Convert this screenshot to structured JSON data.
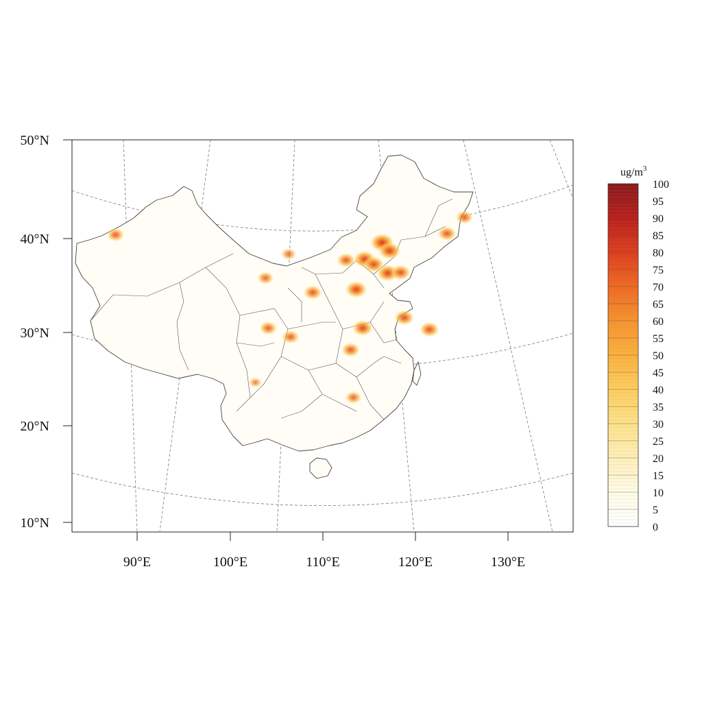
{
  "map": {
    "lat_labels": [
      "50°N",
      "40°N",
      "30°N",
      "20°N",
      "10°N"
    ],
    "lon_labels": [
      "90°E",
      "100°E",
      "110°E",
      "120°E",
      "130°E"
    ],
    "projection": "conic",
    "graticule_style": "dashed"
  },
  "legend": {
    "unit_base": "ug/m",
    "unit_sup": "3",
    "ticks": [
      "100",
      "95",
      "90",
      "85",
      "80",
      "75",
      "70",
      "65",
      "60",
      "55",
      "50",
      "45",
      "40",
      "35",
      "30",
      "25",
      "20",
      "15",
      "10",
      "5",
      "0"
    ],
    "range": [
      0,
      100
    ],
    "palette": [
      "#ffffff",
      "#fffbe6",
      "#ffefb8",
      "#fee28a",
      "#fdcd5e",
      "#fbb13c",
      "#f7922e",
      "#ef6a23",
      "#dd3e1d",
      "#b91f1c",
      "#8b1a1a"
    ]
  },
  "chart_data": {
    "type": "heatmap",
    "variable_unit": "ug/m3",
    "value_range": [
      0,
      100
    ],
    "x_range_deg_E": [
      83,
      137
    ],
    "y_range_deg_N": [
      9,
      51
    ],
    "hotspots": [
      {
        "lon": 116.4,
        "lat": 39.9,
        "value": 80
      },
      {
        "lon": 117.2,
        "lat": 39.1,
        "value": 72
      },
      {
        "lon": 114.5,
        "lat": 38.0,
        "value": 70
      },
      {
        "lon": 115.5,
        "lat": 37.5,
        "value": 65
      },
      {
        "lon": 117.0,
        "lat": 36.7,
        "value": 70
      },
      {
        "lon": 118.4,
        "lat": 36.9,
        "value": 60
      },
      {
        "lon": 113.6,
        "lat": 34.7,
        "value": 70
      },
      {
        "lon": 112.5,
        "lat": 37.8,
        "value": 55
      },
      {
        "lon": 118.8,
        "lat": 32.1,
        "value": 60
      },
      {
        "lon": 121.5,
        "lat": 31.2,
        "value": 60
      },
      {
        "lon": 114.3,
        "lat": 30.6,
        "value": 65
      },
      {
        "lon": 113.0,
        "lat": 28.2,
        "value": 55
      },
      {
        "lon": 123.4,
        "lat": 41.8,
        "value": 55
      },
      {
        "lon": 125.3,
        "lat": 43.9,
        "value": 50
      },
      {
        "lon": 108.9,
        "lat": 34.3,
        "value": 55
      },
      {
        "lon": 104.1,
        "lat": 30.7,
        "value": 50
      },
      {
        "lon": 106.5,
        "lat": 29.6,
        "value": 50
      },
      {
        "lon": 113.3,
        "lat": 23.1,
        "value": 45
      },
      {
        "lon": 103.8,
        "lat": 36.1,
        "value": 45
      },
      {
        "lon": 87.6,
        "lat": 43.8,
        "value": 50
      },
      {
        "lon": 106.3,
        "lat": 38.5,
        "value": 40
      },
      {
        "lon": 102.7,
        "lat": 25.0,
        "value": 30
      }
    ]
  }
}
